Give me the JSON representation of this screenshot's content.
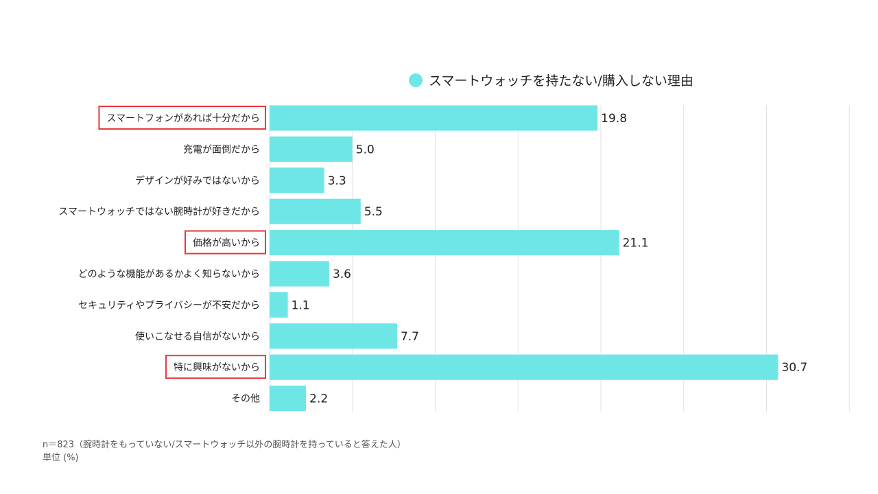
{
  "chart_data": {
    "type": "bar",
    "orientation": "horizontal",
    "categories": [
      "スマートフォンがあれば十分だから",
      "充電が面倒だから",
      "デザインが好みではないから",
      "スマートウォッチではない腕時計が好きだから",
      "価格が高いから",
      "どのような機能があるかよく知らないから",
      "セキュリティやプライバシーが不安だから",
      "使いこなせる自信がないから",
      "特に興味がないから",
      "その他"
    ],
    "series": [
      {
        "name": "スマートウォッチを持たない/購入しない理由",
        "values": [
          19.8,
          5.0,
          3.3,
          5.5,
          21.1,
          3.6,
          1.1,
          7.7,
          30.7,
          2.2
        ],
        "value_labels": [
          "19.8",
          "5.0",
          "3.3",
          "5.5",
          "21.1",
          "3.6",
          "1.1",
          "7.7",
          "30.7",
          "2.2"
        ]
      }
    ],
    "highlighted_categories": [
      0,
      4,
      8
    ],
    "xlim": [
      0,
      35
    ],
    "grid": true,
    "legend_position": "top"
  },
  "colors": {
    "bar": "#6ee6e6",
    "grid": "#e2e2e2",
    "highlight_box": "#e8383d"
  },
  "notes": {
    "sample": "n＝823（腕時計をもっていない/スマートウォッチ以外の腕時計を持っていると答えた人）",
    "unit": "単位 (%)"
  }
}
